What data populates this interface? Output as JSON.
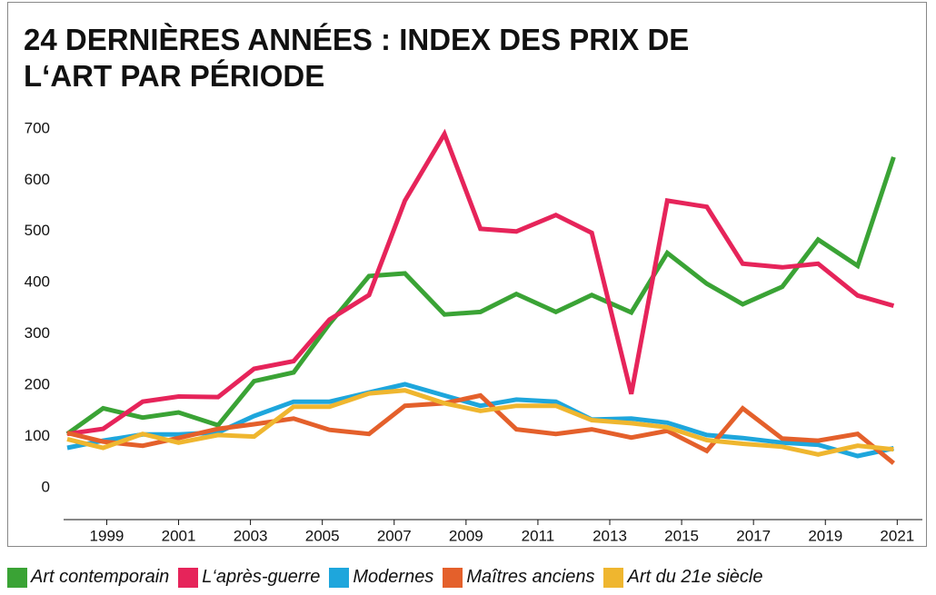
{
  "chart_data": {
    "type": "line",
    "title": "24 DERNIÈRES ANNÉES : INDEX DES PRIX DE L‘ART PAR PÉRIODE",
    "x": [
      1997.9,
      1998.9,
      2000.0,
      2001.0,
      2002.1,
      2003.1,
      2004.2,
      2005.2,
      2006.3,
      2007.3,
      2008.4,
      2009.4,
      2010.4,
      2011.5,
      2012.5,
      2013.6,
      2014.6,
      2015.7,
      2016.7,
      2017.8,
      2018.8,
      2019.9,
      2020.9
    ],
    "xlim": [
      1997.8,
      2021.7
    ],
    "xticks": [
      1999,
      2001,
      2003,
      2005,
      2007,
      2009,
      2011,
      2013,
      2015,
      2017,
      2019,
      2021
    ],
    "ylim": [
      -62,
      721
    ],
    "yticks": [
      0,
      100,
      200,
      300,
      400,
      500,
      600,
      700
    ],
    "grid": false,
    "legend": "bottom",
    "series": [
      {
        "name": "Art contemporain",
        "color": "#3aa335",
        "values": [
          105,
          155,
          137,
          147,
          122,
          208,
          225,
          320,
          413,
          418,
          338,
          343,
          378,
          343,
          376,
          342,
          458,
          398,
          358,
          392,
          484,
          433,
          645
        ]
      },
      {
        "name": "L‘après-guerre",
        "color": "#e6245a",
        "values": [
          105,
          115,
          168,
          178,
          177,
          232,
          247,
          328,
          376,
          560,
          690,
          505,
          500,
          532,
          497,
          183,
          560,
          548,
          437,
          430,
          437,
          375,
          355
        ]
      },
      {
        "name": "Modernes",
        "color": "#1ea6dc",
        "values": [
          78,
          92,
          104,
          104,
          108,
          140,
          168,
          168,
          186,
          202,
          180,
          160,
          172,
          168,
          133,
          135,
          127,
          103,
          97,
          88,
          84,
          62,
          77
        ]
      },
      {
        "name": "Maîtres anciens",
        "color": "#e4602b",
        "values": [
          107,
          90,
          82,
          97,
          115,
          124,
          135,
          113,
          105,
          160,
          165,
          180,
          114,
          105,
          114,
          98,
          111,
          72,
          155,
          96,
          92,
          105,
          48
        ]
      },
      {
        "name": "Art du 21e siècle",
        "color": "#efb62f",
        "values": [
          95,
          78,
          105,
          88,
          103,
          100,
          158,
          158,
          184,
          190,
          165,
          150,
          160,
          160,
          132,
          126,
          118,
          93,
          86,
          80,
          65,
          82,
          75
        ]
      }
    ]
  }
}
